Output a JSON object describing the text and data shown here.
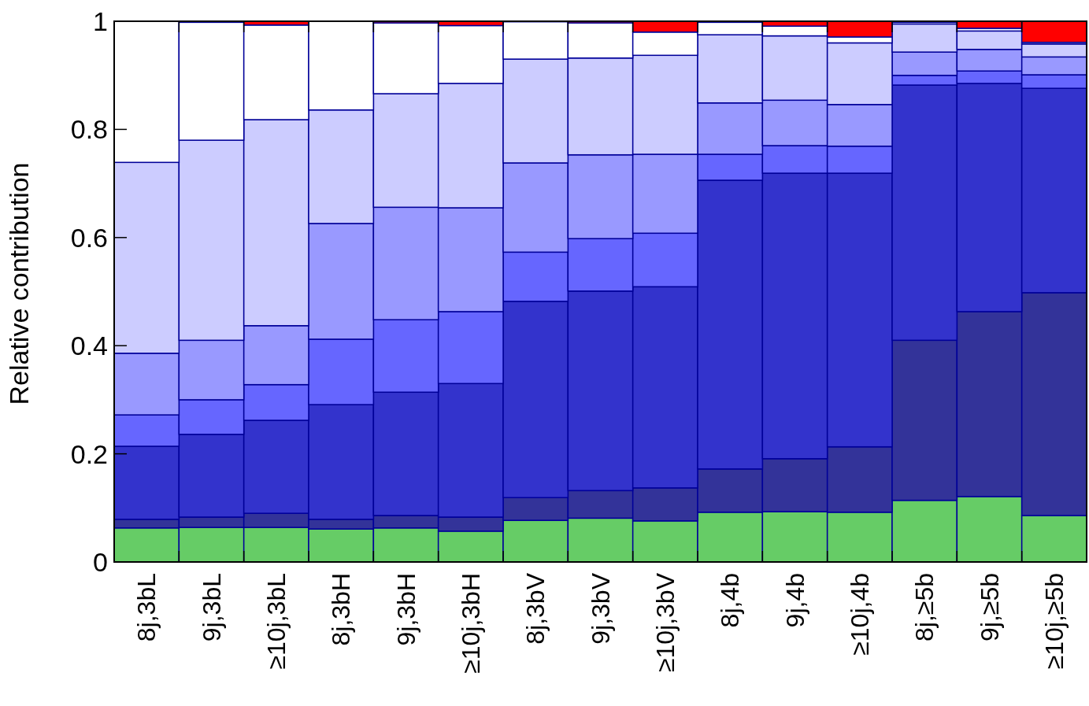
{
  "chart_data": {
    "type": "bar",
    "stacked": true,
    "ylabel": "Relative contribution",
    "categories": [
      "8j,3bL",
      "9j,3bL",
      "≥10j,3bL",
      "8j,3bH",
      "9j,3bH",
      "≥10j,3bH",
      "8j,3bV",
      "9j,3bV",
      "≥10j,3bV",
      "8j,4b",
      "9j,4b",
      "≥10j,4b",
      "8j,≥5b",
      "9j,≥5b",
      "≥10j,≥5b"
    ],
    "series": [
      {
        "color": "#66cc66",
        "values": [
          0.063,
          0.064,
          0.064,
          0.061,
          0.063,
          0.057,
          0.077,
          0.081,
          0.076,
          0.092,
          0.093,
          0.092,
          0.114,
          0.121,
          0.086
        ]
      },
      {
        "color": "#333399",
        "values": [
          0.016,
          0.019,
          0.026,
          0.018,
          0.023,
          0.026,
          0.042,
          0.051,
          0.061,
          0.08,
          0.098,
          0.121,
          0.296,
          0.342,
          0.412
        ]
      },
      {
        "color": "#3333cc",
        "values": [
          0.135,
          0.153,
          0.172,
          0.212,
          0.228,
          0.247,
          0.363,
          0.369,
          0.372,
          0.534,
          0.528,
          0.506,
          0.472,
          0.422,
          0.378
        ]
      },
      {
        "color": "#6666ff",
        "values": [
          0.058,
          0.064,
          0.066,
          0.121,
          0.134,
          0.133,
          0.091,
          0.097,
          0.099,
          0.048,
          0.051,
          0.05,
          0.018,
          0.023,
          0.025
        ]
      },
      {
        "color": "#9999ff",
        "values": [
          0.114,
          0.11,
          0.109,
          0.214,
          0.208,
          0.192,
          0.165,
          0.155,
          0.146,
          0.095,
          0.084,
          0.077,
          0.043,
          0.04,
          0.033
        ]
      },
      {
        "color": "#ccccff",
        "values": [
          0.353,
          0.37,
          0.381,
          0.21,
          0.21,
          0.23,
          0.192,
          0.179,
          0.183,
          0.126,
          0.119,
          0.114,
          0.052,
          0.034,
          0.024
        ]
      },
      {
        "color": "#ffffff",
        "values": [
          0.261,
          0.218,
          0.175,
          0.164,
          0.131,
          0.107,
          0.069,
          0.065,
          0.043,
          0.023,
          0.018,
          0.011,
          0.003,
          0.005,
          0.003
        ]
      },
      {
        "color": "#ff0000",
        "values": [
          0,
          null,
          0.007,
          0,
          0.003,
          0.008,
          null,
          0.003,
          0.02,
          null,
          0.009,
          0.029,
          null,
          0.013,
          0.039
        ]
      }
    ],
    "ylim": [
      0,
      1
    ],
    "yticks": [
      0,
      0.2,
      0.4,
      0.6,
      0.8,
      1
    ],
    "grid": false
  }
}
